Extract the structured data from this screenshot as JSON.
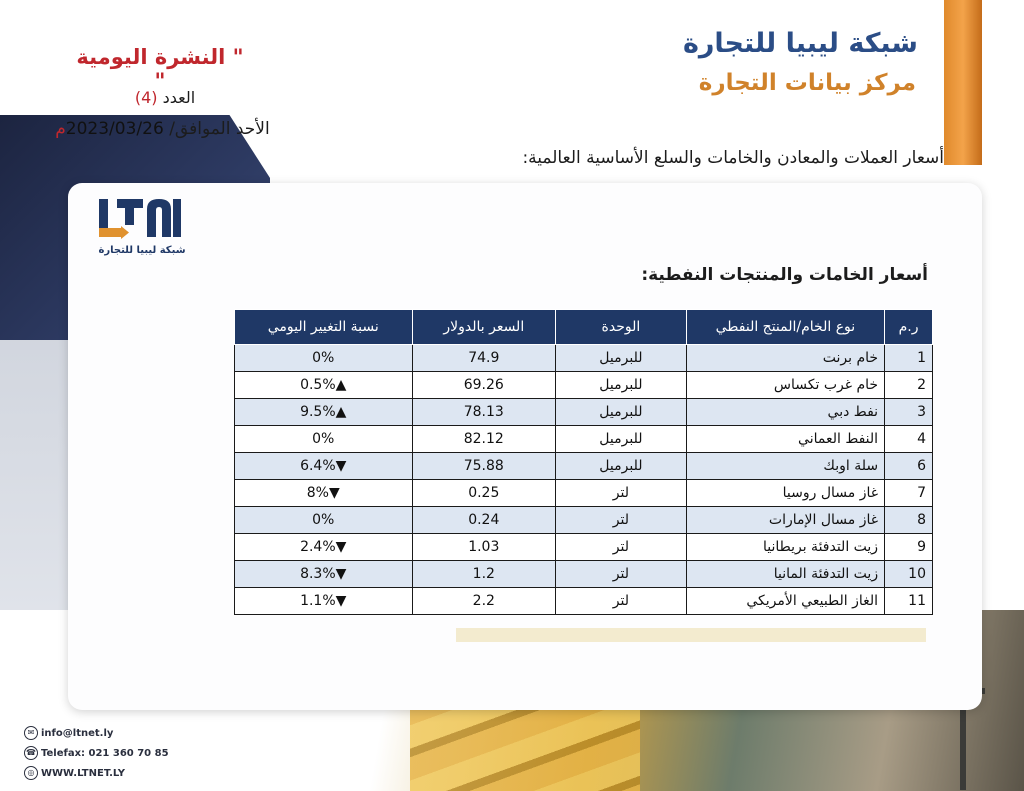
{
  "header": {
    "brand_title": "شبكة ليبيا للتجارة",
    "brand_subtitle": "مركز بيانات التجارة",
    "bulletin_title": "\" النشرة اليومية \"",
    "issue_label": "العدد",
    "issue_number": "(4)",
    "date_prefix": "الأحد الموافق/",
    "date_value": "2023/03/26",
    "date_suffix": "م",
    "intro": "أسعار العملات والمعادن والخامات والسلع الأساسية العالمية:"
  },
  "logo": {
    "mark_text": "LTN",
    "tagline": "شبكة ليبيا للتجارة"
  },
  "section_title": "أسعار الخامات والمنتجات النفطية:",
  "table": {
    "headers": [
      "ر.م",
      "نوع الخام/المنتج النفطي",
      "الوحدة",
      "السعر بالدولار",
      "نسبة التغيير اليومي"
    ],
    "rows": [
      {
        "num": "1",
        "name": "خام برنت",
        "unit": "للبرميل",
        "price": "74.9",
        "change": "0%",
        "dir": "flat",
        "arrow": ""
      },
      {
        "num": "2",
        "name": "خام غرب تكساس",
        "unit": "للبرميل",
        "price": "69.26",
        "change": "0.5%",
        "dir": "up",
        "arrow": "▲"
      },
      {
        "num": "3",
        "name": "نفط دبي",
        "unit": "للبرميل",
        "price": "78.13",
        "change": "9.5%",
        "dir": "up",
        "arrow": "▲"
      },
      {
        "num": "4",
        "name": "النفط العماني",
        "unit": "للبرميل",
        "price": "82.12",
        "change": "0%",
        "dir": "flat",
        "arrow": ""
      },
      {
        "num": "6",
        "name": "سلة اوبك",
        "unit": "للبرميل",
        "price": "75.88",
        "change": "6.4%",
        "dir": "down",
        "arrow": "▼"
      },
      {
        "num": "7",
        "name": "غاز مسال روسيا",
        "unit": "لتر",
        "price": "0.25",
        "change": "8%",
        "dir": "down",
        "arrow": "▼"
      },
      {
        "num": "8",
        "name": "غاز مسال الإمارات",
        "unit": "لتر",
        "price": "0.24",
        "change": "0%",
        "dir": "flat",
        "arrow": ""
      },
      {
        "num": "9",
        "name": "زيت التدفئة بريطانيا",
        "unit": "لتر",
        "price": "1.03",
        "change": "2.4%",
        "dir": "down",
        "arrow": "▼"
      },
      {
        "num": "10",
        "name": "زيت التدفئة المانيا",
        "unit": "لتر",
        "price": "1.2",
        "change": "8.3%",
        "dir": "down",
        "arrow": "▼"
      },
      {
        "num": "11",
        "name": "الغاز الطبيعي الأمريكي",
        "unit": "لتر",
        "price": "2.2",
        "change": "1.1%",
        "dir": "down",
        "arrow": "▼"
      }
    ]
  },
  "contacts": {
    "email": "info@ltnet.ly",
    "phone": "Telefax: 021 360 70 85",
    "website": "WWW.LTNET.LY"
  },
  "colors": {
    "brand_blue": "#2b4d86",
    "brand_orange": "#d0822a",
    "header_navy": "#1f3866",
    "up_green": "#1a9b45",
    "down_red": "#d11f26"
  }
}
